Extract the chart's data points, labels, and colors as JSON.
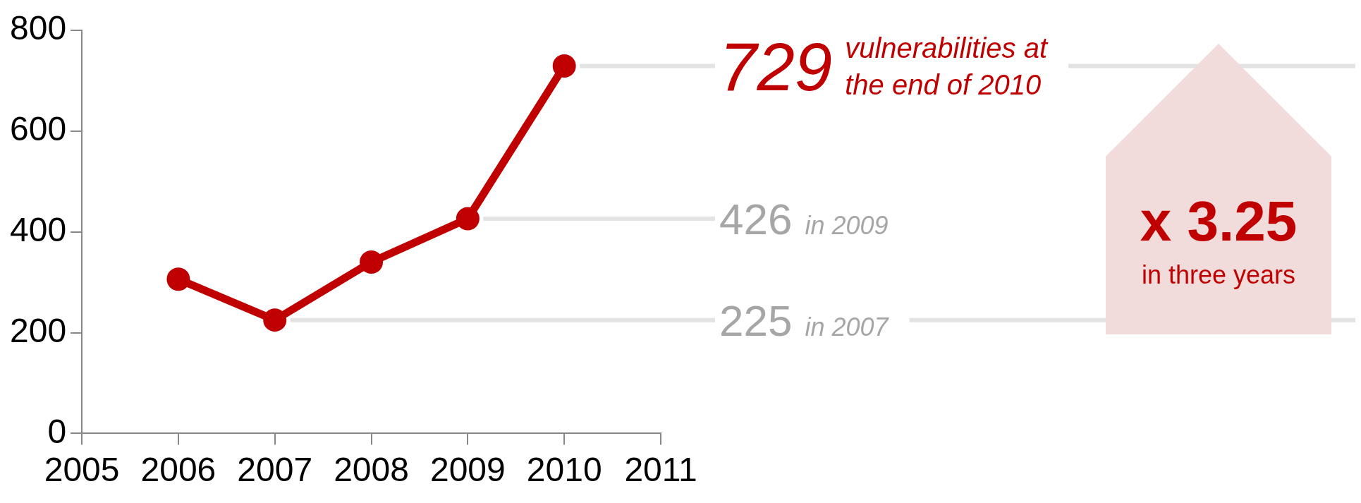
{
  "chart_data": {
    "type": "line",
    "x": [
      2006,
      2007,
      2008,
      2009,
      2010
    ],
    "series": [
      {
        "color": "#c00000",
        "values": [
          306,
          225,
          340,
          426,
          729
        ]
      }
    ],
    "xlim": [
      2005,
      2011
    ],
    "xticks": [
      2005,
      2006,
      2007,
      2008,
      2009,
      2010,
      2011
    ],
    "ylim": [
      0,
      800
    ],
    "yticks": [
      0,
      200,
      400,
      600,
      800
    ],
    "marker": "circle",
    "line_style": "solid",
    "legend": false,
    "annotations": [
      {
        "text": "729",
        "x": 2010,
        "y": 729
      },
      "vulnerabilities at the end of 2010",
      "426",
      "in 2009",
      "225",
      "in 2007",
      "x 3.25",
      "in three years"
    ]
  }
}
